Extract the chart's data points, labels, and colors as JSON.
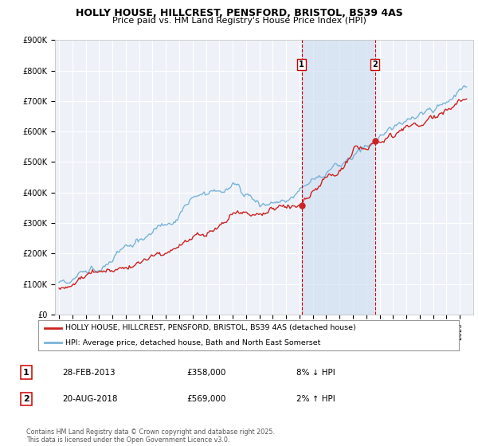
{
  "title_line1": "HOLLY HOUSE, HILLCREST, PENSFORD, BRISTOL, BS39 4AS",
  "title_line2": "Price paid vs. HM Land Registry's House Price Index (HPI)",
  "legend_label1": "HOLLY HOUSE, HILLCREST, PENSFORD, BRISTOL, BS39 4AS (detached house)",
  "legend_label2": "HPI: Average price, detached house, Bath and North East Somerset",
  "transaction1_date": "28-FEB-2013",
  "transaction1_price": "£358,000",
  "transaction1_hpi": "8% ↓ HPI",
  "transaction2_date": "20-AUG-2018",
  "transaction2_price": "£569,000",
  "transaction2_hpi": "2% ↑ HPI",
  "footer": "Contains HM Land Registry data © Crown copyright and database right 2025.\nThis data is licensed under the Open Government Licence v3.0.",
  "ylim": [
    0,
    900000
  ],
  "yticks": [
    0,
    100000,
    200000,
    300000,
    400000,
    500000,
    600000,
    700000,
    800000,
    900000
  ],
  "ytick_labels": [
    "£0",
    "£100K",
    "£200K",
    "£300K",
    "£400K",
    "£500K",
    "£600K",
    "£700K",
    "£800K",
    "£900K"
  ],
  "hpi_color": "#7ab4d8",
  "house_color": "#cc2222",
  "background_color": "#ffffff",
  "plot_bg_color": "#eef2f8",
  "grid_color": "#ffffff",
  "transaction1_x": 2013.16,
  "transaction2_x": 2018.64,
  "vline_color": "#cc0000",
  "shade_color": "#ccddf0",
  "shade_alpha": 0.6,
  "xmin": 1995,
  "xmax": 2025.5
}
